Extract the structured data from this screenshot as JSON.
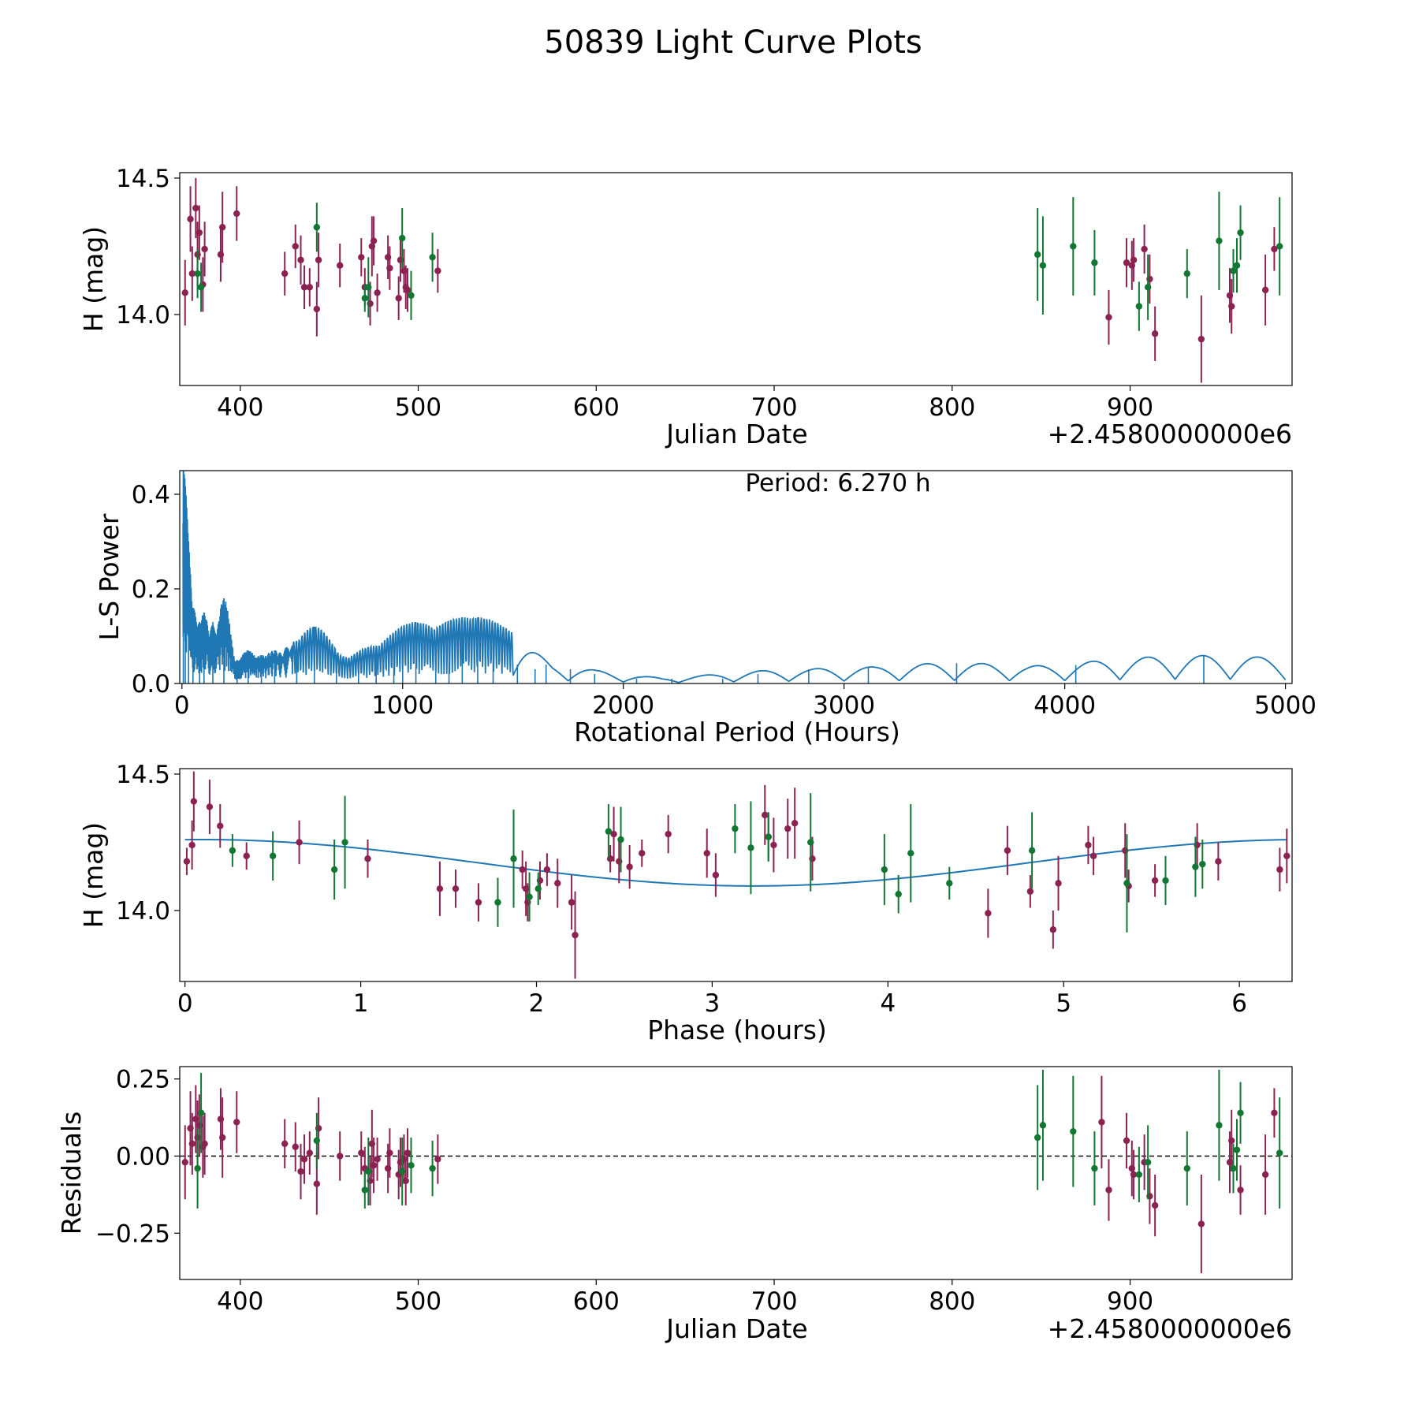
{
  "title": "50839 Light Curve Plots",
  "colors": {
    "band_a": "#8b2252",
    "band_b": "#117733",
    "model": "#1f77b4"
  },
  "chart_data": [
    {
      "name": "light-curve",
      "type": "scatter",
      "xlabel": "Julian Date",
      "ylabel": "H (mag)",
      "x_offset_label": "+2.4580000000e6",
      "xlim": [
        366,
        991
      ],
      "ylim": [
        13.74,
        14.52
      ],
      "xticks": [
        400,
        500,
        600,
        700,
        800,
        900
      ],
      "xtick_labels": [
        "400",
        "500",
        "600",
        "700",
        "800",
        "900"
      ],
      "yticks": [
        14.0,
        14.5
      ],
      "ytick_labels": [
        "14.0",
        "14.5"
      ],
      "series": [
        {
          "name": "band_a",
          "x": [
            369,
            372,
            373,
            375,
            376,
            377,
            379,
            380,
            389,
            390,
            398,
            425,
            431,
            434,
            436,
            439,
            443,
            444,
            456,
            468,
            470,
            473,
            474,
            475,
            477,
            483,
            484,
            489,
            490,
            492,
            493,
            494,
            511,
            888,
            898,
            901,
            902,
            908,
            911,
            914,
            940,
            956,
            957,
            976,
            981
          ],
          "y": [
            14.08,
            14.35,
            14.15,
            14.39,
            14.22,
            14.3,
            14.11,
            14.24,
            14.22,
            14.32,
            14.37,
            14.15,
            14.25,
            14.2,
            14.1,
            14.1,
            14.02,
            14.2,
            14.18,
            14.21,
            14.1,
            14.04,
            14.25,
            14.27,
            14.08,
            14.21,
            14.17,
            14.06,
            14.2,
            14.16,
            14.1,
            14.09,
            14.16,
            13.99,
            14.19,
            14.18,
            14.2,
            14.24,
            14.13,
            13.93,
            13.91,
            14.07,
            14.03,
            14.09,
            14.24
          ],
          "err": [
            0.12,
            0.12,
            0.1,
            0.11,
            0.12,
            0.1,
            0.1,
            0.1,
            0.1,
            0.13,
            0.1,
            0.08,
            0.08,
            0.09,
            0.08,
            0.07,
            0.1,
            0.1,
            0.08,
            0.07,
            0.07,
            0.08,
            0.11,
            0.09,
            0.07,
            0.08,
            0.08,
            0.08,
            0.08,
            0.08,
            0.08,
            0.08,
            0.08,
            0.1,
            0.09,
            0.09,
            0.08,
            0.09,
            0.09,
            0.1,
            0.16,
            0.1,
            0.1,
            0.13,
            0.08
          ]
        },
        {
          "name": "band_b",
          "x": [
            376,
            378,
            443,
            470,
            472,
            491,
            496,
            508,
            848,
            851,
            868,
            880,
            905,
            910,
            932,
            950,
            958,
            960,
            962,
            984
          ],
          "y": [
            14.15,
            14.1,
            14.32,
            14.06,
            14.1,
            14.28,
            14.07,
            14.21,
            14.22,
            14.18,
            14.25,
            14.19,
            14.03,
            14.1,
            14.15,
            14.27,
            14.16,
            14.18,
            14.3,
            14.25
          ],
          "err": [
            0.09,
            0.09,
            0.09,
            0.05,
            0.11,
            0.11,
            0.09,
            0.09,
            0.17,
            0.18,
            0.18,
            0.12,
            0.09,
            0.12,
            0.09,
            0.18,
            0.08,
            0.1,
            0.1,
            0.18
          ]
        }
      ]
    },
    {
      "name": "periodogram",
      "type": "line",
      "xlabel": "Rotational Period (Hours)",
      "ylabel": "L-S Power",
      "annotation": "Period: 6.270 h",
      "xlim": [
        -10,
        5030
      ],
      "ylim": [
        0,
        0.45
      ],
      "xticks": [
        0,
        1000,
        2000,
        3000,
        4000,
        5000
      ],
      "xtick_labels": [
        "0",
        "1000",
        "2000",
        "3000",
        "4000",
        "5000"
      ],
      "yticks": [
        0.0,
        0.2,
        0.4
      ],
      "ytick_labels": [
        "0.0",
        "0.2",
        "0.4"
      ],
      "peaks": {
        "x": [
          6.27,
          15,
          30,
          50,
          80,
          100,
          140,
          190,
          250,
          300,
          360,
          420,
          520,
          600,
          700,
          800,
          880,
          960,
          1000,
          1060,
          1150,
          1210,
          1270,
          1340,
          1410,
          1520,
          1600,
          1650,
          1760,
          1870,
          2060,
          2220,
          2450,
          2610,
          2840,
          3110,
          3510,
          4050,
          4630
        ],
        "y": [
          0.45,
          0.36,
          0.18,
          0.16,
          0.13,
          0.15,
          0.13,
          0.18,
          0.05,
          0.07,
          0.06,
          0.07,
          0.09,
          0.12,
          0.06,
          0.05,
          0.08,
          0.06,
          0.1,
          0.13,
          0.06,
          0.08,
          0.14,
          0.14,
          0.08,
          0.04,
          0.03,
          0.04,
          0.03,
          0.02,
          0.01,
          0.01,
          0.01,
          0.02,
          0.03,
          0.035,
          0.043,
          0.039,
          0.059
        ]
      }
    },
    {
      "name": "phase-folded",
      "type": "scatter",
      "xlabel": "Phase (hours)",
      "ylabel": "H (mag)",
      "xlim": [
        -0.03,
        6.3
      ],
      "ylim": [
        13.74,
        14.52
      ],
      "xticks": [
        0,
        1,
        2,
        3,
        4,
        5,
        6
      ],
      "xtick_labels": [
        "0",
        "1",
        "2",
        "3",
        "4",
        "5",
        "6"
      ],
      "yticks": [
        14.0,
        14.5
      ],
      "ytick_labels": [
        "14.0",
        "14.5"
      ],
      "model": {
        "offset": 14.175,
        "amplitude": 0.085,
        "peak_phase": 0.1,
        "period": 6.27
      },
      "series": [
        {
          "name": "band_a",
          "x": [
            0.01,
            0.04,
            0.05,
            0.14,
            0.2,
            0.35,
            0.65,
            1.04,
            1.45,
            1.54,
            1.67,
            1.92,
            1.94,
            1.95,
            2.02,
            2.06,
            2.12,
            2.2,
            2.22,
            2.42,
            2.44,
            2.47,
            2.53,
            2.6,
            2.75,
            2.97,
            3.02,
            3.3,
            3.32,
            3.35,
            3.43,
            3.47,
            3.57,
            4.57,
            4.68,
            4.81,
            4.94,
            4.97,
            5.14,
            5.17,
            5.35,
            5.37,
            5.52,
            5.76,
            5.88,
            6.23,
            6.27
          ],
          "y": [
            14.18,
            14.24,
            14.4,
            14.38,
            14.31,
            14.2,
            14.25,
            14.19,
            14.08,
            14.08,
            14.03,
            14.15,
            14.08,
            14.03,
            14.11,
            14.15,
            14.1,
            14.03,
            13.91,
            14.19,
            14.28,
            14.18,
            14.16,
            14.21,
            14.28,
            14.21,
            14.13,
            14.35,
            14.27,
            14.24,
            14.3,
            14.32,
            14.19,
            13.99,
            14.22,
            14.07,
            13.93,
            14.1,
            14.24,
            14.2,
            14.22,
            14.09,
            14.11,
            14.24,
            14.18,
            14.15,
            14.2
          ],
          "err": [
            0.05,
            0.09,
            0.11,
            0.1,
            0.08,
            0.05,
            0.08,
            0.07,
            0.1,
            0.07,
            0.07,
            0.07,
            0.1,
            0.07,
            0.07,
            0.06,
            0.09,
            0.1,
            0.16,
            0.05,
            0.1,
            0.08,
            0.08,
            0.05,
            0.07,
            0.09,
            0.08,
            0.11,
            0.09,
            0.1,
            0.11,
            0.13,
            0.08,
            0.09,
            0.09,
            0.06,
            0.07,
            0.1,
            0.07,
            0.07,
            0.1,
            0.06,
            0.06,
            0.08,
            0.07,
            0.08,
            0.1
          ]
        },
        {
          "name": "band_b",
          "x": [
            0.27,
            0.5,
            0.85,
            0.91,
            1.78,
            1.87,
            1.96,
            2.01,
            2.41,
            2.48,
            3.13,
            3.22,
            3.32,
            3.56,
            3.98,
            4.06,
            4.13,
            4.35,
            4.82,
            5.36,
            5.58,
            5.75,
            5.79
          ],
          "y": [
            14.22,
            14.2,
            14.15,
            14.25,
            14.03,
            14.19,
            14.05,
            14.08,
            14.29,
            14.26,
            14.3,
            14.23,
            14.27,
            14.25,
            14.15,
            14.06,
            14.21,
            14.1,
            14.22,
            14.1,
            14.11,
            14.16,
            14.17
          ],
          "err": [
            0.06,
            0.09,
            0.11,
            0.17,
            0.09,
            0.18,
            0.09,
            0.06,
            0.1,
            0.12,
            0.09,
            0.17,
            0.09,
            0.18,
            0.13,
            0.07,
            0.18,
            0.06,
            0.14,
            0.18,
            0.09,
            0.11,
            0.09
          ]
        }
      ]
    },
    {
      "name": "residuals",
      "type": "scatter",
      "xlabel": "Julian Date",
      "ylabel": "Residuals",
      "x_offset_label": "+2.4580000000e6",
      "xlim": [
        366,
        991
      ],
      "ylim": [
        -0.4,
        0.29
      ],
      "xticks": [
        400,
        500,
        600,
        700,
        800,
        900
      ],
      "xtick_labels": [
        "400",
        "500",
        "600",
        "700",
        "800",
        "900"
      ],
      "yticks": [
        -0.25,
        0.0,
        0.25
      ],
      "ytick_labels": [
        "−0.25",
        "0.00",
        "0.25"
      ],
      "zero_line": 0,
      "series": [
        {
          "name": "band_a",
          "x": [
            369,
            372,
            373,
            375,
            376,
            377,
            379,
            380,
            389,
            390,
            398,
            425,
            431,
            434,
            436,
            439,
            443,
            444,
            456,
            468,
            470,
            473,
            474,
            475,
            477,
            483,
            484,
            489,
            490,
            492,
            493,
            494,
            511,
            884,
            888,
            898,
            901,
            902,
            908,
            911,
            914,
            940,
            956,
            957,
            962,
            976,
            981
          ],
          "y": [
            -0.02,
            0.09,
            0.04,
            0.12,
            0.06,
            0.1,
            0.03,
            0.04,
            0.12,
            0.06,
            0.11,
            0.04,
            0.03,
            -0.05,
            -0.01,
            0.01,
            -0.09,
            0.09,
            0.0,
            0.01,
            -0.04,
            -0.08,
            0.04,
            -0.03,
            -0.01,
            -0.04,
            0.01,
            -0.06,
            -0.02,
            -0.01,
            -0.08,
            0.01,
            -0.01,
            0.11,
            -0.11,
            0.05,
            -0.04,
            -0.06,
            -0.02,
            -0.13,
            -0.16,
            -0.22,
            -0.02,
            0.05,
            -0.11,
            -0.06,
            0.14
          ],
          "err": [
            0.12,
            0.12,
            0.1,
            0.11,
            0.12,
            0.1,
            0.1,
            0.1,
            0.1,
            0.13,
            0.1,
            0.08,
            0.08,
            0.09,
            0.08,
            0.07,
            0.1,
            0.1,
            0.08,
            0.07,
            0.07,
            0.08,
            0.11,
            0.09,
            0.07,
            0.08,
            0.08,
            0.08,
            0.08,
            0.08,
            0.08,
            0.08,
            0.08,
            0.15,
            0.1,
            0.09,
            0.09,
            0.08,
            0.09,
            0.09,
            0.1,
            0.16,
            0.1,
            0.1,
            0.08,
            0.13,
            0.08
          ]
        },
        {
          "name": "band_b",
          "x": [
            376,
            378,
            443,
            470,
            472,
            491,
            496,
            508,
            848,
            851,
            868,
            880,
            905,
            910,
            932,
            950,
            958,
            960,
            962,
            984
          ],
          "y": [
            -0.04,
            0.14,
            0.05,
            -0.11,
            -0.05,
            -0.05,
            -0.03,
            -0.04,
            0.06,
            0.1,
            0.08,
            -0.04,
            -0.06,
            -0.02,
            -0.04,
            0.1,
            -0.04,
            0.02,
            0.14,
            0.01
          ],
          "err": [
            0.13,
            0.13,
            0.09,
            0.06,
            0.11,
            0.11,
            0.09,
            0.09,
            0.17,
            0.18,
            0.18,
            0.12,
            0.09,
            0.12,
            0.12,
            0.18,
            0.08,
            0.1,
            0.1,
            0.18
          ]
        }
      ]
    }
  ]
}
